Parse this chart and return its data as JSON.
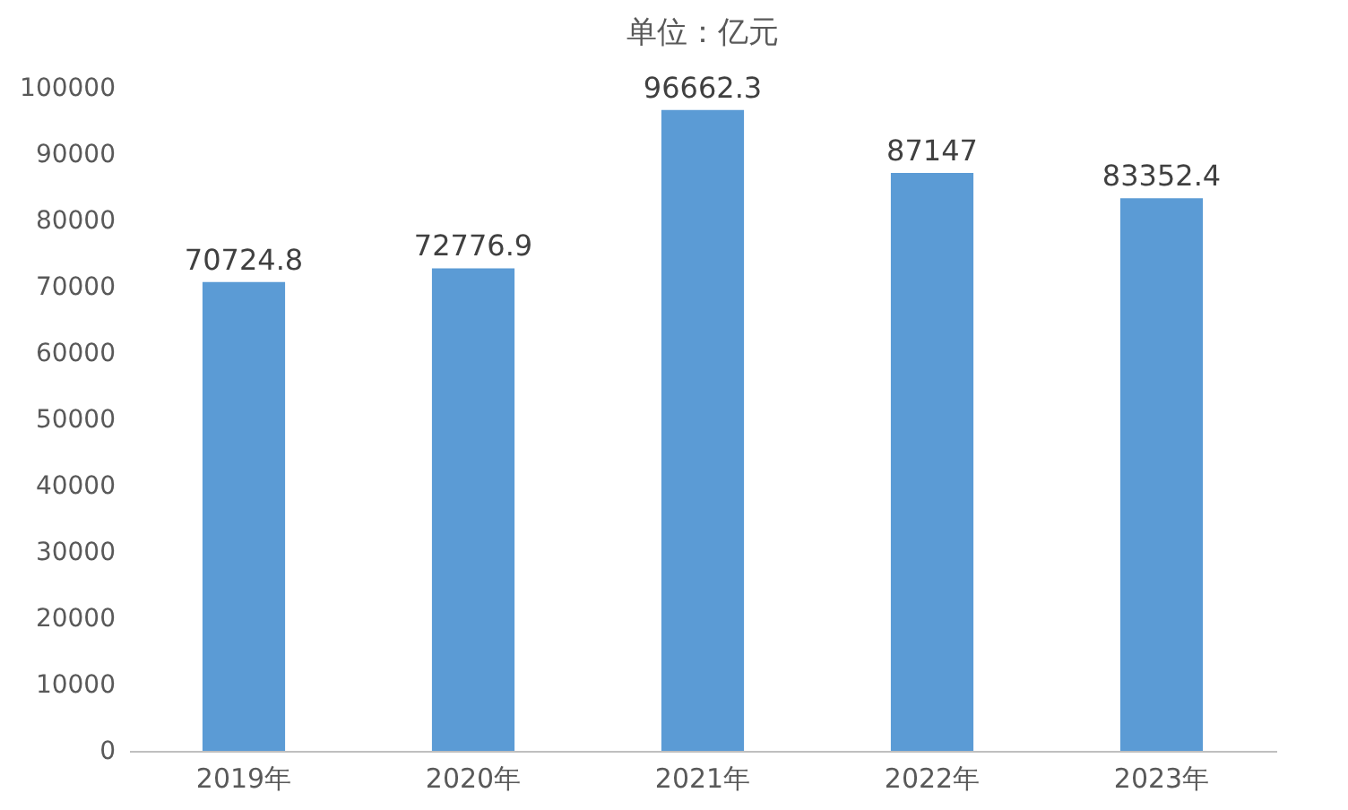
{
  "chart_data": {
    "type": "bar",
    "title": "单位：亿元",
    "categories": [
      "2019年",
      "2020年",
      "2021年",
      "2022年",
      "2023年"
    ],
    "values": [
      70724.8,
      72776.9,
      96662.3,
      87147,
      83352.4
    ],
    "value_labels": [
      "70724.8",
      "72776.9",
      "96662.3",
      "87147",
      "83352.4"
    ],
    "color": "#5b9bd5",
    "ylim": [
      0,
      100000
    ],
    "yticks": [
      0,
      10000,
      20000,
      30000,
      40000,
      50000,
      60000,
      70000,
      80000,
      90000,
      100000
    ],
    "grid": false
  }
}
